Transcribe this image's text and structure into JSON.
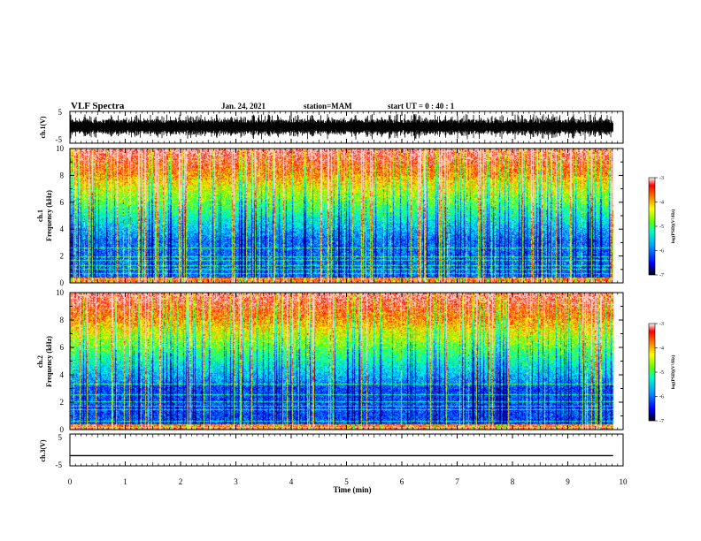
{
  "header": {
    "title": "VLF Spectra",
    "date": "Jan. 24, 2021",
    "station": "station=MAM",
    "start": "start UT =  0 : 40 : 1"
  },
  "chart_data": {
    "type": "heatmap",
    "x_axis": {
      "label": "Time (min)",
      "range": [
        0,
        10
      ],
      "ticks": [
        "0",
        "1",
        "2",
        "3",
        "4",
        "5",
        "6",
        "7",
        "8",
        "9",
        "10"
      ]
    },
    "panels": [
      {
        "id": "ch1-waveform",
        "type": "line",
        "ylabel": "ch.1(V)",
        "yrange": [
          -5,
          5
        ],
        "yticks": [
          "5",
          "-5"
        ]
      },
      {
        "id": "ch1-spectrogram",
        "type": "heatmap",
        "ylabel_line1": "ch.1",
        "ylabel_line2": "Frequency (kHz)",
        "yrange": [
          0,
          10
        ],
        "yticks": [
          "0",
          "2",
          "4",
          "6",
          "8",
          "10"
        ],
        "colorbar": {
          "label": "log(PSD)(V²/Hz)",
          "range": [
            -7,
            -3
          ],
          "ticks": [
            "-3",
            "-4",
            "-5",
            "-6",
            "-7"
          ]
        }
      },
      {
        "id": "ch2-spectrogram",
        "type": "heatmap",
        "ylabel_line1": "ch.2",
        "ylabel_line2": "Frequency (kHz)",
        "yrange": [
          0,
          10
        ],
        "yticks": [
          "0",
          "2",
          "4",
          "6",
          "8",
          "10"
        ],
        "colorbar": {
          "label": "log(PSD)(V²/Hz)",
          "range": [
            -7,
            -3
          ],
          "ticks": [
            "-3",
            "-4",
            "-5",
            "-6",
            "-7"
          ]
        }
      },
      {
        "id": "ch3-waveform",
        "type": "line",
        "ylabel": "ch.3(V)",
        "yrange": [
          -5,
          5
        ],
        "yticks": [
          "5",
          "-5"
        ],
        "constant_value": -1.8
      }
    ],
    "data_end_min": 9.82,
    "colormap": [
      "#00007a",
      "#0000ff",
      "#0080ff",
      "#00ffff",
      "#00ff80",
      "#80ff00",
      "#ffff00",
      "#ff8000",
      "#ff0000",
      "#ffffff"
    ],
    "legend": "right"
  }
}
